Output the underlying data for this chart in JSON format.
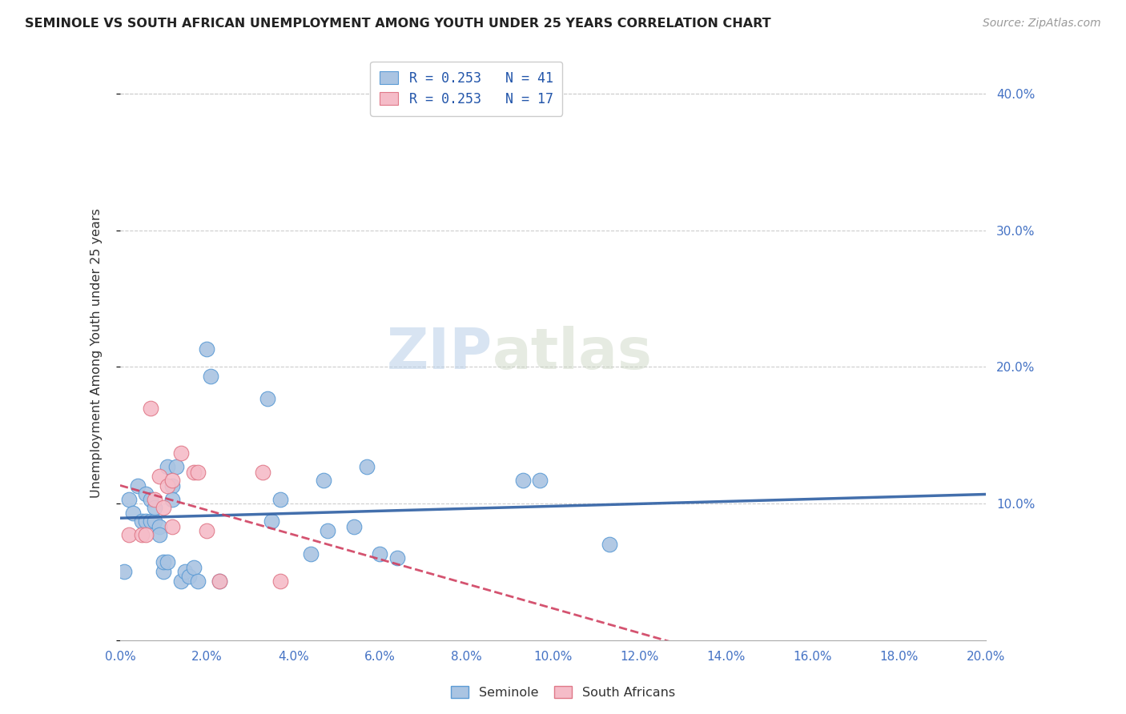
{
  "title": "SEMINOLE VS SOUTH AFRICAN UNEMPLOYMENT AMONG YOUTH UNDER 25 YEARS CORRELATION CHART",
  "source": "Source: ZipAtlas.com",
  "ylabel": "Unemployment Among Youth under 25 years",
  "xlim": [
    0.0,
    0.2
  ],
  "ylim": [
    0.0,
    0.42
  ],
  "xticks": [
    0.0,
    0.02,
    0.04,
    0.06,
    0.08,
    0.1,
    0.12,
    0.14,
    0.16,
    0.18,
    0.2
  ],
  "yticks": [
    0.1,
    0.2,
    0.3,
    0.4
  ],
  "seminole_color": "#aac4e2",
  "seminole_edge": "#5b9bd5",
  "south_african_color": "#f5bcc8",
  "south_african_edge": "#e07888",
  "trendline_seminole_color": "#2e5fa3",
  "trendline_sa_color": "#d04060",
  "background_color": "#ffffff",
  "watermark_1": "ZIP",
  "watermark_2": "atlas",
  "legend_line1": "R = 0.253   N = 41",
  "legend_line2": "R = 0.253   N = 17",
  "trendline_x_extend": 0.2,
  "seminole_x": [
    0.001,
    0.002,
    0.003,
    0.004,
    0.005,
    0.006,
    0.006,
    0.007,
    0.007,
    0.008,
    0.008,
    0.009,
    0.009,
    0.01,
    0.01,
    0.011,
    0.011,
    0.012,
    0.012,
    0.013,
    0.014,
    0.015,
    0.016,
    0.017,
    0.018,
    0.02,
    0.021,
    0.023,
    0.034,
    0.035,
    0.037,
    0.044,
    0.047,
    0.048,
    0.054,
    0.057,
    0.06,
    0.064,
    0.093,
    0.097,
    0.113
  ],
  "seminole_y": [
    0.05,
    0.103,
    0.093,
    0.113,
    0.087,
    0.107,
    0.087,
    0.087,
    0.103,
    0.087,
    0.097,
    0.083,
    0.077,
    0.05,
    0.057,
    0.057,
    0.127,
    0.113,
    0.103,
    0.127,
    0.043,
    0.05,
    0.047,
    0.053,
    0.043,
    0.213,
    0.193,
    0.043,
    0.177,
    0.087,
    0.103,
    0.063,
    0.117,
    0.08,
    0.083,
    0.127,
    0.063,
    0.06,
    0.117,
    0.117,
    0.07
  ],
  "sa_x": [
    0.002,
    0.005,
    0.006,
    0.007,
    0.008,
    0.009,
    0.01,
    0.011,
    0.012,
    0.012,
    0.014,
    0.017,
    0.018,
    0.02,
    0.023,
    0.033,
    0.037
  ],
  "sa_y": [
    0.077,
    0.077,
    0.077,
    0.17,
    0.103,
    0.12,
    0.097,
    0.113,
    0.117,
    0.083,
    0.137,
    0.123,
    0.123,
    0.08,
    0.043,
    0.123,
    0.043
  ]
}
